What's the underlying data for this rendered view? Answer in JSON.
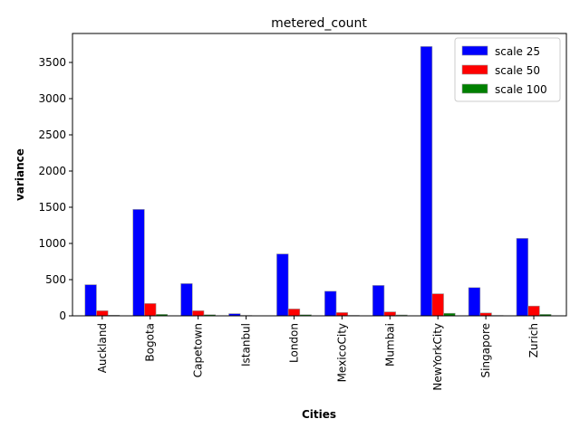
{
  "chart_data": {
    "type": "bar",
    "title": "metered_count",
    "xlabel": "Cities",
    "ylabel": "variance",
    "categories": [
      "Auckland",
      "Bogota",
      "Capetown",
      "Istanbul",
      "London",
      "MexicoCity",
      "Mumbai",
      "NewYorkCity",
      "Singapore",
      "Zurich"
    ],
    "series": [
      {
        "name": "scale 25",
        "color": "#0000ff",
        "values": [
          430,
          1470,
          445,
          30,
          855,
          340,
          420,
          3720,
          390,
          1070
        ]
      },
      {
        "name": "scale 50",
        "color": "#ff0000",
        "values": [
          70,
          170,
          70,
          5,
          95,
          45,
          55,
          305,
          40,
          135
        ]
      },
      {
        "name": "scale 100",
        "color": "#008000",
        "values": [
          8,
          20,
          15,
          2,
          15,
          6,
          12,
          35,
          5,
          20
        ]
      }
    ],
    "ylim": [
      0,
      3900
    ],
    "yticks": [
      0,
      500,
      1000,
      1500,
      2000,
      2500,
      3000,
      3500
    ],
    "grid": false,
    "legend_position": "top-right"
  }
}
